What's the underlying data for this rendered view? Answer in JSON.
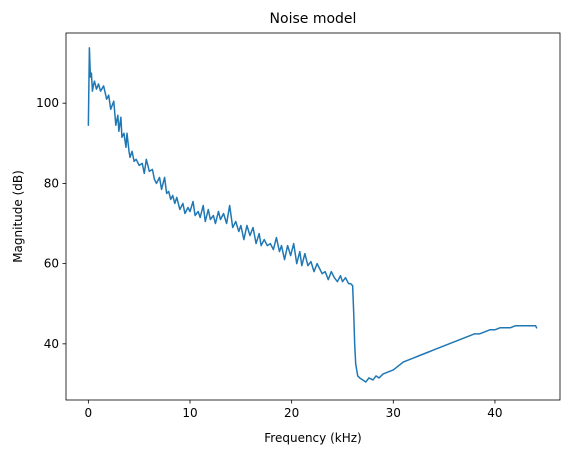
{
  "chart_data": {
    "type": "line",
    "title": "Noise model",
    "xlabel": "Frequency (kHz)",
    "ylabel": "Magnitude (dB)",
    "xlim": [
      -2.2,
      46.4
    ],
    "ylim": [
      26.0,
      117.5
    ],
    "xticks": [
      0,
      10,
      20,
      30,
      40
    ],
    "yticks": [
      40,
      60,
      80,
      100
    ],
    "xtick_labels": [
      "0",
      "10",
      "20",
      "30",
      "40"
    ],
    "ytick_labels": [
      "40",
      "60",
      "80",
      "100"
    ],
    "grid": false,
    "line_color": "#1f77b4",
    "series": [
      {
        "x": [
          0.0,
          0.1,
          0.2,
          0.3,
          0.4,
          0.5,
          0.6,
          0.8,
          1.0,
          1.2,
          1.5,
          1.8,
          2.0,
          2.2,
          2.5,
          2.7,
          2.9,
          3.0,
          3.2,
          3.3,
          3.5,
          3.7,
          3.8,
          4.0,
          4.1,
          4.3,
          4.5,
          4.7,
          5.0,
          5.3,
          5.5,
          5.7,
          6.0,
          6.3,
          6.5,
          6.7,
          7.0,
          7.2,
          7.5,
          7.7,
          7.9,
          8.1,
          8.3,
          8.5,
          8.7,
          9.0,
          9.3,
          9.5,
          9.8,
          10.0,
          10.3,
          10.5,
          10.8,
          11.0,
          11.3,
          11.5,
          11.8,
          12.0,
          12.3,
          12.5,
          12.8,
          13.0,
          13.3,
          13.6,
          13.9,
          14.2,
          14.5,
          14.8,
          15.0,
          15.3,
          15.6,
          15.9,
          16.2,
          16.5,
          16.8,
          17.0,
          17.3,
          17.6,
          17.9,
          18.2,
          18.5,
          18.8,
          19.0,
          19.3,
          19.6,
          19.9,
          20.2,
          20.5,
          20.8,
          21.0,
          21.3,
          21.6,
          21.9,
          22.2,
          22.5,
          22.8,
          23.0,
          23.3,
          23.6,
          23.9,
          24.2,
          24.5,
          24.8,
          25.0,
          25.3,
          25.6,
          25.8,
          26.0,
          26.1,
          26.2,
          26.3,
          26.5,
          26.7,
          27.0,
          27.3,
          27.6,
          28.0,
          28.3,
          28.6,
          29.0,
          29.5,
          30.0,
          30.5,
          31.0,
          31.5,
          32.0,
          32.5,
          33.0,
          33.5,
          34.0,
          34.5,
          35.0,
          35.5,
          36.0,
          36.5,
          37.0,
          37.5,
          38.0,
          38.5,
          39.0,
          39.5,
          40.0,
          40.5,
          41.0,
          41.5,
          42.0,
          42.5,
          43.0,
          43.5,
          44.0,
          44.1
        ],
        "y": [
          94.5,
          113.8,
          106.5,
          107.5,
          103.0,
          104.5,
          105.5,
          103.5,
          104.8,
          103.0,
          104.3,
          101.0,
          102.0,
          98.5,
          100.5,
          94.5,
          97.0,
          93.0,
          96.5,
          91.5,
          92.5,
          89.0,
          92.5,
          88.0,
          86.5,
          88.0,
          85.5,
          86.0,
          84.5,
          85.0,
          82.5,
          86.0,
          83.0,
          83.5,
          81.0,
          80.0,
          81.5,
          78.5,
          81.5,
          77.5,
          78.0,
          76.0,
          77.0,
          75.0,
          76.5,
          73.5,
          75.0,
          72.5,
          74.0,
          73.0,
          75.5,
          72.0,
          73.0,
          71.5,
          74.5,
          70.5,
          73.5,
          71.0,
          72.0,
          70.0,
          73.0,
          71.0,
          72.5,
          70.0,
          74.5,
          69.0,
          70.5,
          68.0,
          69.5,
          66.0,
          69.5,
          67.0,
          69.0,
          65.0,
          67.5,
          64.5,
          66.0,
          64.5,
          65.0,
          63.5,
          66.5,
          63.0,
          64.5,
          61.0,
          64.5,
          62.0,
          65.0,
          60.0,
          63.0,
          59.5,
          62.5,
          59.5,
          60.5,
          58.0,
          60.0,
          58.5,
          57.5,
          58.0,
          56.0,
          58.0,
          56.5,
          55.5,
          57.0,
          55.5,
          56.5,
          55.0,
          55.0,
          54.5,
          48.0,
          40.0,
          35.0,
          32.0,
          31.5,
          31.0,
          30.5,
          31.5,
          31.0,
          32.0,
          31.5,
          32.5,
          33.0,
          33.5,
          34.5,
          35.5,
          36.0,
          36.5,
          37.0,
          37.5,
          38.0,
          38.5,
          39.0,
          39.5,
          40.0,
          40.5,
          41.0,
          41.5,
          42.0,
          42.5,
          42.5,
          43.0,
          43.5,
          43.5,
          44.0,
          44.0,
          44.0,
          44.5,
          44.5,
          44.5,
          44.5,
          44.5,
          44.0
        ]
      }
    ]
  }
}
